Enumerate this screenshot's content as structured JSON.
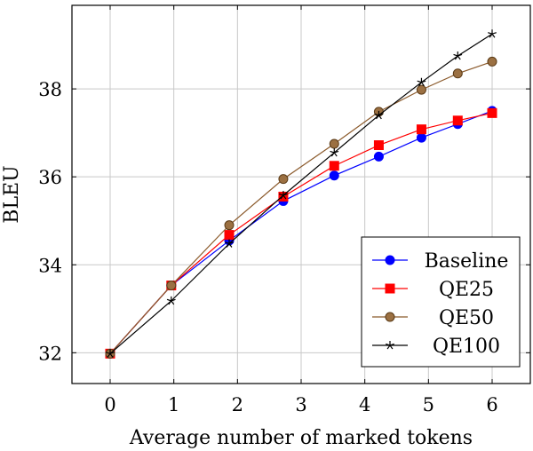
{
  "chart_data": {
    "type": "line",
    "title": "",
    "xlabel": "Average number of marked tokens",
    "ylabel": "BLEU",
    "xlim": [
      -0.6,
      6.6
    ],
    "ylim": [
      31.3,
      39.9
    ],
    "xticks": [
      0,
      1,
      2,
      3,
      4,
      5,
      6
    ],
    "yticks": [
      32,
      34,
      36,
      38
    ],
    "grid": true,
    "legend_position": "bottom-right",
    "series": [
      {
        "name": "Baseline",
        "color": "#0000ff",
        "marker": "circle",
        "x": [
          0,
          0.96,
          1.87,
          2.72,
          3.52,
          4.22,
          4.89,
          5.46,
          6.0
        ],
        "y": [
          31.98,
          33.53,
          34.55,
          35.45,
          36.03,
          36.46,
          36.89,
          37.2,
          37.5
        ]
      },
      {
        "name": "QE25",
        "color": "#ff0000",
        "marker": "square",
        "x": [
          0,
          0.96,
          1.87,
          2.72,
          3.52,
          4.22,
          4.89,
          5.46,
          6.0
        ],
        "y": [
          31.98,
          33.53,
          34.68,
          35.55,
          36.25,
          36.72,
          37.08,
          37.28,
          37.45
        ]
      },
      {
        "name": "QE50",
        "color": "#8b5a2b",
        "marker": "circle",
        "x": [
          0,
          0.96,
          1.87,
          2.72,
          3.52,
          4.22,
          4.89,
          5.46,
          6.0
        ],
        "y": [
          31.98,
          33.53,
          34.9,
          35.95,
          36.75,
          37.48,
          37.98,
          38.35,
          38.62
        ]
      },
      {
        "name": "QE100",
        "color": "#000000",
        "marker": "star",
        "x": [
          0,
          0.96,
          1.87,
          2.72,
          3.52,
          4.22,
          4.89,
          5.46,
          6.0
        ],
        "y": [
          31.98,
          33.18,
          34.48,
          35.58,
          36.55,
          37.4,
          38.15,
          38.75,
          39.25
        ]
      }
    ]
  }
}
